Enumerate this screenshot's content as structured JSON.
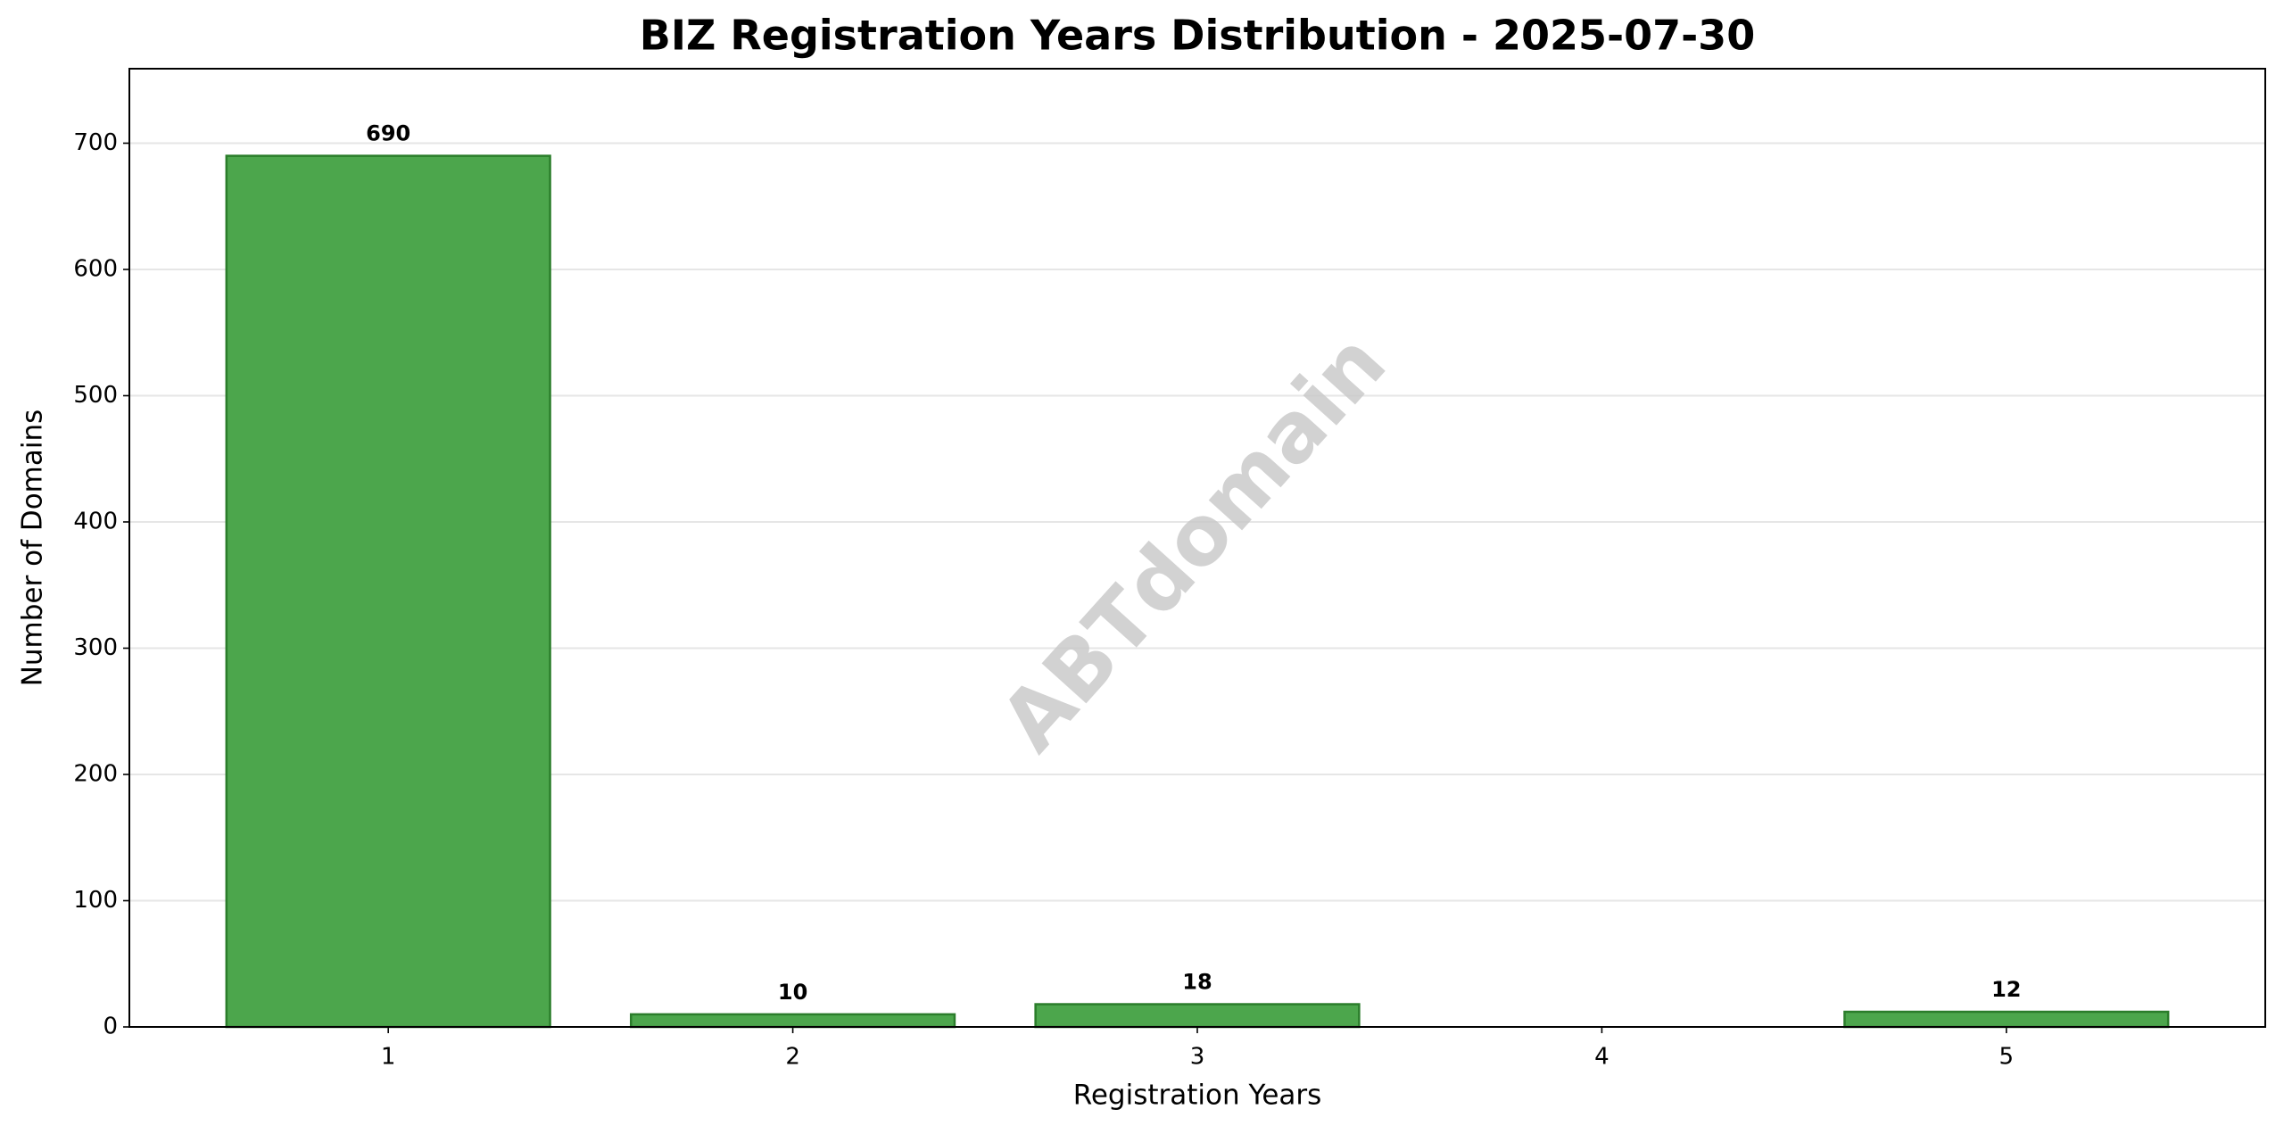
{
  "chart_data": {
    "type": "bar",
    "title": "BIZ Registration Years Distribution - 2025-07-30",
    "x_label": "Registration Years",
    "y_label": "Number of Domains",
    "watermark": "ABTdomain",
    "x": [
      1,
      2,
      3,
      5
    ],
    "values": [
      690,
      10,
      18,
      12
    ],
    "color": "#4ca64c",
    "edgecolor": "#2b7d2b",
    "xlim": [
      0.36,
      5.64
    ],
    "xticks": [
      1,
      2,
      3,
      4,
      5
    ],
    "ylim": [
      0,
      759
    ],
    "yticks": [
      0,
      100,
      200,
      300,
      400,
      500,
      600,
      700
    ],
    "grid": true
  }
}
